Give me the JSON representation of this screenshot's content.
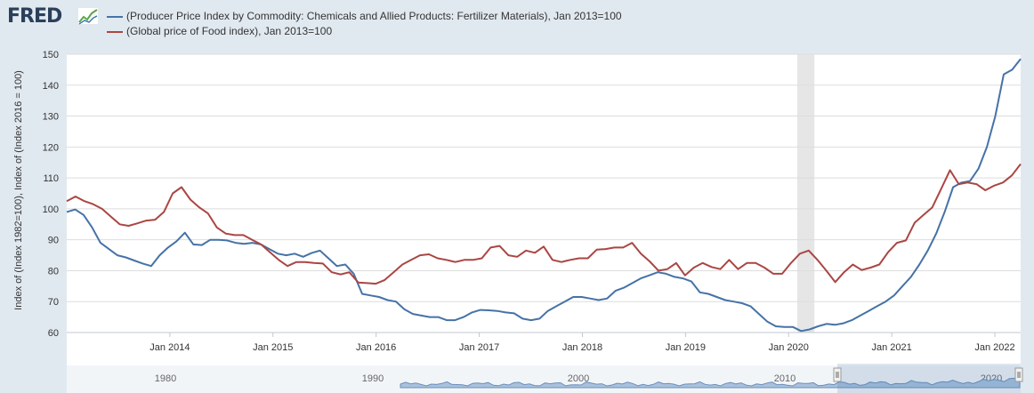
{
  "header": {
    "logo_text": "FRED",
    "logo_icon": "line-chart-icon"
  },
  "colors": {
    "series1": "#4572a7",
    "series2": "#aa4643",
    "recession": "#e6e6e6",
    "grid": "#dddddd",
    "navigator_fill": "#a8c1dd",
    "background": "#e1e9f0"
  },
  "chart_data": {
    "type": "line",
    "ylabel": "Index of (Index 1982=100), Index of (Index 2016 = 100)",
    "xlabel": "",
    "ylim": [
      60,
      150
    ],
    "yticks": [
      60,
      70,
      80,
      90,
      100,
      110,
      120,
      130,
      140,
      150
    ],
    "x_range": [
      "2013-01",
      "2022-04"
    ],
    "xticks": [
      {
        "date": "2014-01",
        "label": "Jan 2014"
      },
      {
        "date": "2015-01",
        "label": "Jan 2015"
      },
      {
        "date": "2016-01",
        "label": "Jan 2016"
      },
      {
        "date": "2017-01",
        "label": "Jan 2017"
      },
      {
        "date": "2018-01",
        "label": "Jan 2018"
      },
      {
        "date": "2019-01",
        "label": "Jan 2019"
      },
      {
        "date": "2020-01",
        "label": "Jan 2020"
      },
      {
        "date": "2021-01",
        "label": "Jan 2021"
      },
      {
        "date": "2022-01",
        "label": "Jan 2022"
      }
    ],
    "recession": {
      "start": "2020-02",
      "end": "2020-04"
    },
    "grid": true,
    "legend_position": "top",
    "series": [
      {
        "name": "(Producer Price Index by Commodity: Chemicals and Allied Products: Fertilizer Materials), Jan 2013=100",
        "color": "#4572a7",
        "values": [
          99,
          99.8,
          98,
          94,
          89,
          87,
          85,
          84.3,
          83.3,
          82.3,
          81.5,
          85,
          87.5,
          89.5,
          92.3,
          88.5,
          88.3,
          90,
          90,
          89.8,
          89,
          88.7,
          89,
          88.5,
          87,
          85.5,
          85,
          85.5,
          84.5,
          85.7,
          86.5,
          84,
          81.5,
          82,
          79,
          72.5,
          72,
          71.5,
          70.5,
          70,
          67.5,
          66,
          65.5,
          65,
          65,
          64,
          64,
          65,
          66.5,
          67.3,
          67.2,
          67,
          66.5,
          66.2,
          64.5,
          64,
          64.5,
          67,
          68.5,
          70,
          71.5,
          71.5,
          71,
          70.5,
          71,
          73.5,
          74.5,
          76,
          77.5,
          78.5,
          79.5,
          79,
          78,
          77.5,
          76.5,
          73,
          72.5,
          71.5,
          70.5,
          70,
          69.5,
          68.5,
          66,
          63.5,
          62,
          61.8,
          61.8,
          60.5,
          61,
          62,
          62.8,
          62.5,
          63,
          64,
          65.5,
          67,
          68.5,
          70,
          72,
          75,
          78,
          82,
          86.5,
          92,
          99,
          107,
          108.5,
          109,
          113,
          120,
          130,
          143.5,
          145,
          148.5
        ]
      },
      {
        "name": "(Global price of Food index), Jan 2013=100",
        "color": "#aa4643",
        "values": [
          102.5,
          104,
          102.5,
          101.5,
          100,
          97.5,
          95,
          94.5,
          95.3,
          96.2,
          96.5,
          99,
          105,
          107,
          103,
          100.5,
          98.5,
          94,
          92,
          91.5,
          91.5,
          90,
          88.5,
          86,
          83.5,
          81.5,
          82.8,
          82.8,
          82.5,
          82.3,
          79.5,
          78.8,
          79.5,
          76.2,
          76,
          75.8,
          77,
          79.5,
          82,
          83.5,
          85,
          85.3,
          84,
          83.5,
          82.8,
          83.5,
          83.5,
          84,
          87.5,
          88,
          85,
          84.5,
          86.5,
          85.8,
          87.8,
          83.5,
          82.8,
          83.5,
          84,
          84,
          86.8,
          87,
          87.5,
          87.5,
          89,
          85.5,
          83,
          80,
          80.5,
          82.5,
          78.5,
          81,
          82.5,
          81.2,
          80.5,
          83.5,
          80.5,
          82.5,
          82.5,
          81,
          79,
          79,
          82.5,
          85.5,
          86.5,
          83.5,
          80,
          76.3,
          79.5,
          82,
          80.2,
          81,
          82,
          86,
          89,
          89.8,
          95.5,
          98,
          100.5,
          106.5,
          112.5,
          108,
          108.5,
          108,
          106,
          107.5,
          108.5,
          110.8,
          114.5
        ]
      }
    ],
    "navigator": {
      "tick_labels": [
        "1980",
        "1990",
        "2000",
        "2010",
        "2020"
      ]
    }
  }
}
